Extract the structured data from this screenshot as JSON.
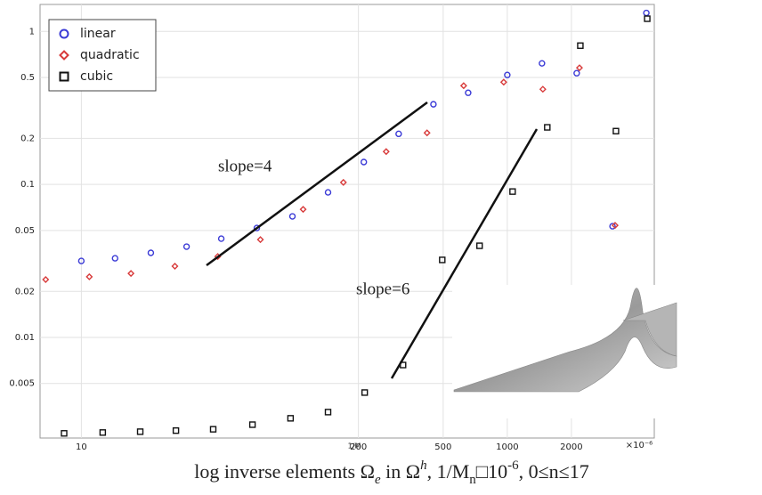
{
  "chart_data": {
    "type": "scatter",
    "log_x": true,
    "log_y": true,
    "grid": true,
    "legend": "upper left",
    "x_label": "1/M",
    "x_unit": "×10⁻⁶",
    "xlim": [
      6.4,
      4900
    ],
    "xticks": [
      10,
      200,
      500,
      1000,
      2000
    ],
    "ylim": [
      0.0022,
      1.5
    ],
    "yticks": [
      0.005,
      0.01,
      0.02,
      0.05,
      0.1,
      0.2,
      0.5,
      1
    ],
    "series": [
      {
        "name": "linear",
        "color": "#3a3ad6",
        "marker": "circle",
        "x": [
          10,
          14.4,
          21.2,
          31.2,
          45.4,
          66.7,
          98,
          144,
          212,
          309,
          450,
          655,
          1000,
          1455,
          2118,
          3119,
          4498
        ],
        "values": [
          0.0316,
          0.0329,
          0.0357,
          0.0392,
          0.0442,
          0.0519,
          0.0618,
          0.0887,
          0.14,
          0.214,
          0.334,
          0.397,
          0.519,
          0.618,
          0.533,
          0.0533,
          1.32
        ]
      },
      {
        "name": "quadratic",
        "color": "#d83a3a",
        "marker": "diamond",
        "x": [
          6.8,
          10.9,
          17.1,
          27.5,
          43.7,
          69.3,
          110,
          170,
          270,
          420,
          624,
          962,
          1469,
          2182,
          3208
        ],
        "values": [
          0.0239,
          0.0249,
          0.0262,
          0.0292,
          0.0338,
          0.0436,
          0.0687,
          0.103,
          0.164,
          0.217,
          0.442,
          0.466,
          0.419,
          0.578,
          0.054
        ]
      },
      {
        "name": "cubic",
        "color": "#111111",
        "marker": "square",
        "x": [
          8.3,
          12.6,
          18.9,
          27.8,
          41.6,
          63.6,
          96,
          144,
          214,
          324,
          495,
          741,
          1059,
          1541,
          2203,
          3237,
          4540
        ],
        "values": [
          0.00236,
          0.00239,
          0.00242,
          0.00246,
          0.00251,
          0.00269,
          0.00296,
          0.00325,
          0.00436,
          0.0066,
          0.0321,
          0.0397,
          0.0898,
          0.236,
          0.807,
          0.223,
          1.21
        ]
      }
    ],
    "annotations": [
      "slope=4",
      "slope=6"
    ],
    "caption": [
      "log inverse elements Ω",
      "e",
      " in Ω",
      "h",
      ", 1/M",
      "n",
      "□10",
      "-6",
      ", 0≤n≤17"
    ]
  }
}
